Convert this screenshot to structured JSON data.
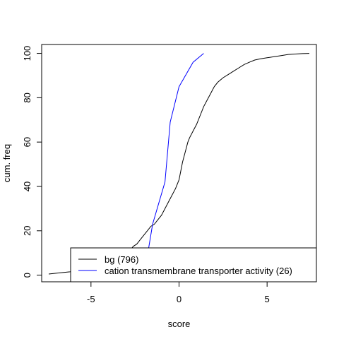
{
  "chart_data": {
    "type": "line",
    "title": "",
    "xlabel": "score",
    "ylabel": "cum. freq",
    "xlim": [
      -7.8,
      7.8
    ],
    "ylim": [
      -3,
      104
    ],
    "xticks": [
      -5,
      0,
      5
    ],
    "xtick_labels": [
      "-5",
      "0",
      "5"
    ],
    "yticks": [
      0,
      20,
      40,
      60,
      80,
      100
    ],
    "ytick_labels": [
      "0",
      "20",
      "40",
      "60",
      "80",
      "100"
    ],
    "grid": false,
    "legend_position": "bottom-right",
    "series": [
      {
        "name": "bg (796)",
        "color": "#000000",
        "x": [
          -7.4,
          -6.8,
          -6.2,
          -5.8,
          -5.4,
          -5.0,
          -4.6,
          -4.2,
          -3.9,
          -3.6,
          -3.3,
          -3.0,
          -2.8,
          -2.6,
          -2.4,
          -2.2,
          -2.0,
          -1.8,
          -1.6,
          -1.4,
          -1.2,
          -1.0,
          -0.8,
          -0.6,
          -0.4,
          -0.2,
          0.0,
          0.1,
          0.2,
          0.3,
          0.4,
          0.5,
          0.6,
          0.8,
          1.0,
          1.2,
          1.4,
          1.6,
          1.8,
          2.0,
          2.2,
          2.5,
          2.8,
          3.1,
          3.4,
          3.7,
          4.0,
          4.3,
          4.6,
          5.0,
          5.4,
          5.8,
          6.2,
          6.6,
          7.0,
          7.4
        ],
        "y": [
          0.5,
          1,
          1.5,
          2,
          2.5,
          3,
          4,
          5,
          6,
          7,
          8,
          9,
          11,
          13,
          14,
          16,
          18,
          20,
          22,
          23,
          25,
          27,
          30,
          33,
          36,
          39,
          43,
          47,
          51,
          54,
          57,
          60,
          62,
          65,
          68,
          72,
          76,
          79,
          82,
          85,
          87,
          89,
          90.5,
          92,
          93.5,
          95,
          96,
          97,
          97.5,
          98,
          98.5,
          99,
          99.5,
          99.7,
          99.9,
          100
        ]
      },
      {
        "name": "cation transmembrane transporter activity (26)",
        "color": "#0000ff",
        "x": [
          -3.2,
          -1.9,
          -1.5,
          -0.8,
          -0.5,
          0.0,
          0.8,
          1.4
        ],
        "y": [
          0,
          3.8,
          23,
          42,
          69,
          85,
          96,
          100
        ]
      }
    ]
  }
}
